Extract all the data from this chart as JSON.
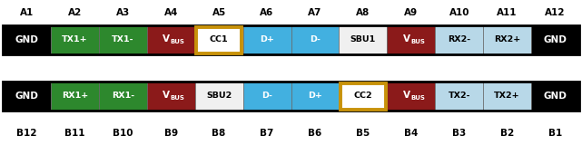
{
  "top_labels": [
    "A1",
    "A2",
    "A3",
    "A4",
    "A5",
    "A6",
    "A7",
    "A8",
    "A9",
    "A10",
    "A11",
    "A12"
  ],
  "bottom_labels": [
    "B12",
    "B11",
    "B10",
    "B9",
    "B8",
    "B7",
    "B6",
    "B5",
    "B4",
    "B3",
    "B2",
    "B1"
  ],
  "row1_pins": [
    "GND",
    "TX1+",
    "TX1-",
    "VBUS",
    "CC1",
    "D+",
    "D-",
    "SBU1",
    "VBUS",
    "RX2-",
    "RX2+",
    "GND"
  ],
  "row2_pins": [
    "GND",
    "RX1+",
    "RX1-",
    "VBUS",
    "SBU2",
    "D-",
    "D+",
    "CC2",
    "VBUS",
    "TX2-",
    "TX2+",
    "GND"
  ],
  "row1_colors": [
    "#000000",
    "#2d882d",
    "#2d882d",
    "#8b1a1a",
    "#ffffff",
    "#42b0e0",
    "#42b0e0",
    "#f0f0f0",
    "#8b1a1a",
    "#b8d8e8",
    "#b8d8e8",
    "#000000"
  ],
  "row2_colors": [
    "#000000",
    "#2d882d",
    "#2d882d",
    "#8b1a1a",
    "#f0f0f0",
    "#42b0e0",
    "#42b0e0",
    "#ffffff",
    "#8b1a1a",
    "#b8d8e8",
    "#b8d8e8",
    "#000000"
  ],
  "row1_text_colors": [
    "#ffffff",
    "#ffffff",
    "#ffffff",
    "#ffffff",
    "#000000",
    "#ffffff",
    "#ffffff",
    "#000000",
    "#ffffff",
    "#000000",
    "#000000",
    "#ffffff"
  ],
  "row2_text_colors": [
    "#ffffff",
    "#ffffff",
    "#ffffff",
    "#ffffff",
    "#000000",
    "#ffffff",
    "#ffffff",
    "#000000",
    "#ffffff",
    "#000000",
    "#000000",
    "#ffffff"
  ],
  "row1_highlight": [
    4
  ],
  "row2_highlight": [
    7
  ],
  "highlight_color": "#c8920a",
  "background_color": "#ffffff"
}
